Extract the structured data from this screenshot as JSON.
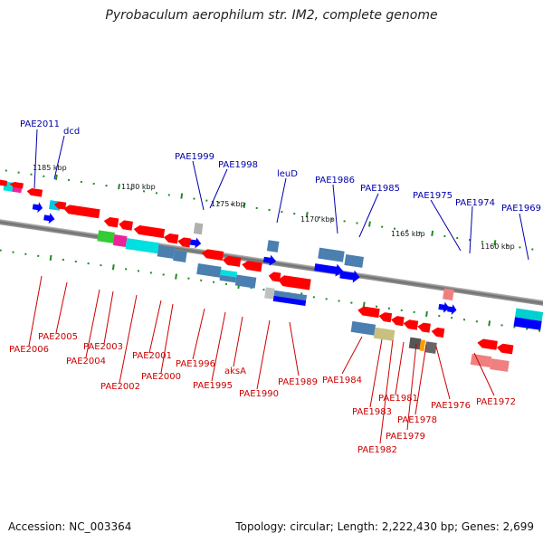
{
  "title": "Pyrobaculum aerophilum str. IM2, complete genome",
  "accession": "Accession: NC_003364",
  "summary": "Topology: circular; Length: 2,222,430 bp; Genes: 2,699",
  "positions": [
    "1185 kbp",
    "1180 kbp",
    "1175 kbp",
    "1170 kbp",
    "1165 kbp",
    "1160 kbp"
  ],
  "top_genes": [
    "PAE2011",
    "dcd",
    "PAE1999",
    "PAE1998",
    "leuD",
    "PAE1986",
    "PAE1985",
    "PAE1975",
    "PAE1974",
    "PAE1969"
  ],
  "bottom_genes": [
    "PAE2006",
    "PAE2005",
    "PAE2004",
    "PAE2003",
    "PAE2002",
    "PAE2001",
    "PAE2000",
    "PAE1996",
    "PAE1995",
    "aksA",
    "PAE1990",
    "PAE1989",
    "PAE1984",
    "PAE1983",
    "PAE1982",
    "PAE1981",
    "PAE1979",
    "PAE1978",
    "PAE1976",
    "PAE1972"
  ],
  "colors": {
    "blue_label": "#0000aa",
    "red_label": "#cc0000",
    "gene_red": "#ff0000",
    "gene_blue": "#0000ff",
    "gene_steel": "#4a7fb0",
    "gene_cyan": "#00e0e0",
    "gene_pink": "#ff6699",
    "gene_green": "#33cc33",
    "gene_magenta": "#ee2299",
    "gene_tan": "#c8c080",
    "gene_gray": "#666666",
    "gene_salmon": "#f08080",
    "gene_orange": "#ff9900",
    "tick_green": "#228b22",
    "backbone": "#7f7f7f"
  }
}
